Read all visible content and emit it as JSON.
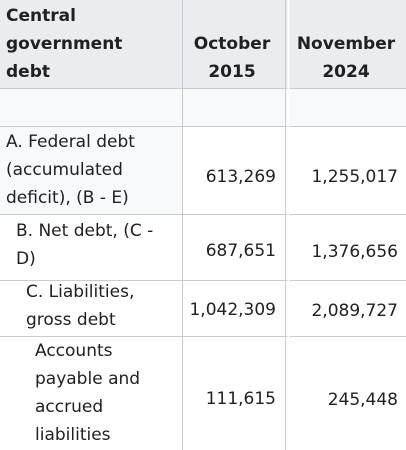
{
  "header": {
    "col1_lines": [
      "Central",
      "government",
      "debt"
    ],
    "col2_lines": [
      "October",
      "2015"
    ],
    "col3_lines": [
      "November",
      "2024"
    ]
  },
  "rows": [
    {
      "label_lines": [
        "A. Federal debt",
        "(accumulated",
        "deficit), (B - E)"
      ],
      "oct_2015": "613,269",
      "nov_2024": "1,255,017"
    },
    {
      "label_lines": [
        "B. Net debt, (C -",
        "D)"
      ],
      "oct_2015": "687,651",
      "nov_2024": "1,376,656"
    },
    {
      "label_lines": [
        "C. Liabilities,",
        "gross debt"
      ],
      "oct_2015": "1,042,309",
      "nov_2024": "2,089,727"
    },
    {
      "label_lines": [
        "Accounts",
        "payable and",
        "accrued",
        "liabilities"
      ],
      "oct_2015": "111,615",
      "nov_2024": "245,448"
    }
  ]
}
